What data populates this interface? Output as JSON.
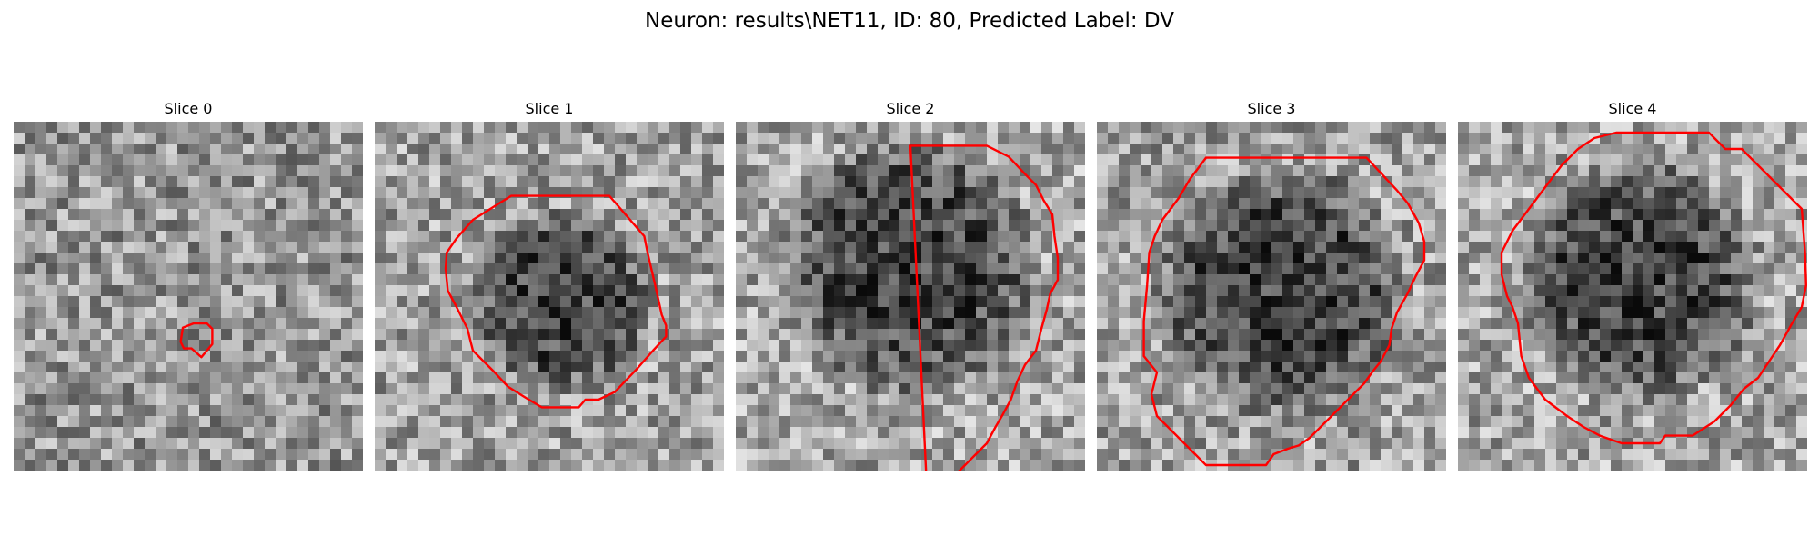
{
  "figure": {
    "title": "Neuron: results\\NET11, ID: 80, Predicted Label: DV"
  },
  "panels": [
    {
      "title": "Slice 0",
      "seed": 11,
      "base_gray": 150,
      "blob": [],
      "contour": [
        [
          16.5,
          18.5
        ],
        [
          17.7,
          18.5
        ],
        [
          18.2,
          19.0
        ],
        [
          18.2,
          20.4
        ],
        [
          17.2,
          21.6
        ],
        [
          16.3,
          20.8
        ],
        [
          15.6,
          20.8
        ],
        [
          15.3,
          20.2
        ],
        [
          15.5,
          18.9
        ]
      ]
    },
    {
      "title": "Slice 1",
      "seed": 23,
      "base_gray": 160,
      "blob": [
        [
          17.2,
          16.5,
          8.7,
          95
        ]
      ],
      "contour": [
        [
          12.5,
          6.8
        ],
        [
          21.5,
          6.8
        ],
        [
          24.7,
          10.5
        ],
        [
          25.0,
          12.0
        ],
        [
          25.7,
          15.0
        ],
        [
          26.3,
          17.7
        ],
        [
          26.7,
          18.7
        ],
        [
          26.7,
          19.7
        ],
        [
          25.5,
          21.0
        ],
        [
          24.0,
          22.7
        ],
        [
          22.0,
          24.8
        ],
        [
          20.5,
          25.5
        ],
        [
          19.3,
          25.5
        ],
        [
          18.7,
          26.2
        ],
        [
          15.3,
          26.2
        ],
        [
          13.8,
          25.3
        ],
        [
          12.2,
          24.3
        ],
        [
          10.8,
          22.8
        ],
        [
          9.0,
          21.0
        ],
        [
          8.5,
          19.0
        ],
        [
          7.5,
          17.0
        ],
        [
          6.7,
          15.5
        ],
        [
          6.5,
          13.5
        ],
        [
          6.6,
          12.0
        ],
        [
          7.5,
          10.7
        ],
        [
          9.0,
          9.0
        ]
      ]
    },
    {
      "title": "Slice 2",
      "seed": 37,
      "base_gray": 165,
      "blob": [
        [
          16.0,
          13.3,
          12.5,
          100
        ]
      ],
      "contour": [
        [
          16.0,
          2.2
        ],
        [
          23.0,
          2.2
        ],
        [
          25.0,
          3.2
        ],
        [
          26.5,
          4.8
        ],
        [
          27.5,
          5.8
        ],
        [
          28.2,
          7.2
        ],
        [
          29.0,
          8.5
        ],
        [
          29.2,
          10.5
        ],
        [
          29.5,
          12.5
        ],
        [
          29.5,
          14.5
        ],
        [
          28.8,
          15.8
        ],
        [
          28.5,
          17.2
        ],
        [
          28.0,
          19.0
        ],
        [
          27.5,
          21.0
        ],
        [
          26.5,
          22.3
        ],
        [
          25.8,
          23.8
        ],
        [
          25.2,
          25.5
        ],
        [
          24.5,
          26.8
        ],
        [
          23.8,
          28.0
        ],
        [
          23.0,
          29.5
        ],
        [
          22.0,
          30.5
        ],
        [
          21.0,
          31.5
        ],
        [
          20.0,
          32.5
        ],
        [
          19.0,
          32.5
        ],
        [
          18.5,
          33.0
        ],
        [
          17.5,
          33.5
        ]
      ]
    },
    {
      "title": "Slice 3",
      "seed": 49,
      "base_gray": 160,
      "blob": [
        [
          17.0,
          15.5,
          12.0,
          100
        ]
      ],
      "contour": [
        [
          10.0,
          3.3
        ],
        [
          24.7,
          3.3
        ],
        [
          27.5,
          6.3
        ],
        [
          28.5,
          7.5
        ],
        [
          29.5,
          9.3
        ],
        [
          30.0,
          11.0
        ],
        [
          30.0,
          12.7
        ],
        [
          29.2,
          14.2
        ],
        [
          28.5,
          15.7
        ],
        [
          27.5,
          17.5
        ],
        [
          27.0,
          19.0
        ],
        [
          26.8,
          20.5
        ],
        [
          26.0,
          22.0
        ],
        [
          25.2,
          23.0
        ],
        [
          24.5,
          24.0
        ],
        [
          23.5,
          25.0
        ],
        [
          22.5,
          26.0
        ],
        [
          21.5,
          27.0
        ],
        [
          20.5,
          28.0
        ],
        [
          19.5,
          29.0
        ],
        [
          18.5,
          29.7
        ],
        [
          17.5,
          30.0
        ],
        [
          16.2,
          30.5
        ],
        [
          15.5,
          31.5
        ],
        [
          10.0,
          31.5
        ],
        [
          7.5,
          29.0
        ],
        [
          5.5,
          27.0
        ],
        [
          5.0,
          25.0
        ],
        [
          5.5,
          23.0
        ],
        [
          4.3,
          21.5
        ],
        [
          4.3,
          18.3
        ],
        [
          4.6,
          15.0
        ],
        [
          4.8,
          12.0
        ],
        [
          5.3,
          10.5
        ],
        [
          6.0,
          9.0
        ],
        [
          7.5,
          7.0
        ],
        [
          8.5,
          5.3
        ]
      ]
    },
    {
      "title": "Slice 4",
      "seed": 61,
      "base_gray": 165,
      "blob": [
        [
          16.5,
          14.5,
          11.8,
          100
        ]
      ],
      "contour": [
        [
          14.5,
          1.0
        ],
        [
          23.0,
          1.0
        ],
        [
          24.5,
          2.5
        ],
        [
          26.0,
          2.5
        ],
        [
          28.5,
          5.0
        ],
        [
          30.0,
          6.5
        ],
        [
          31.5,
          8.0
        ],
        [
          31.8,
          12.0
        ],
        [
          31.9,
          15.0
        ],
        [
          31.5,
          17.0
        ],
        [
          30.5,
          18.7
        ],
        [
          29.5,
          20.5
        ],
        [
          28.5,
          22.0
        ],
        [
          27.5,
          23.5
        ],
        [
          26.2,
          24.5
        ],
        [
          25.0,
          26.0
        ],
        [
          23.5,
          27.5
        ],
        [
          21.5,
          28.8
        ],
        [
          19.0,
          28.8
        ],
        [
          18.5,
          29.5
        ],
        [
          15.0,
          29.5
        ],
        [
          13.0,
          28.8
        ],
        [
          11.5,
          28.0
        ],
        [
          10.0,
          27.0
        ],
        [
          8.0,
          25.5
        ],
        [
          6.5,
          23.5
        ],
        [
          5.8,
          21.5
        ],
        [
          5.5,
          18.5
        ],
        [
          5.0,
          17.0
        ],
        [
          4.5,
          16.0
        ],
        [
          4.0,
          14.0
        ],
        [
          4.0,
          12.0
        ],
        [
          5.0,
          10.0
        ],
        [
          6.5,
          8.0
        ],
        [
          8.0,
          6.0
        ],
        [
          9.5,
          4.0
        ],
        [
          11.0,
          2.5
        ],
        [
          12.5,
          1.5
        ]
      ]
    }
  ]
}
